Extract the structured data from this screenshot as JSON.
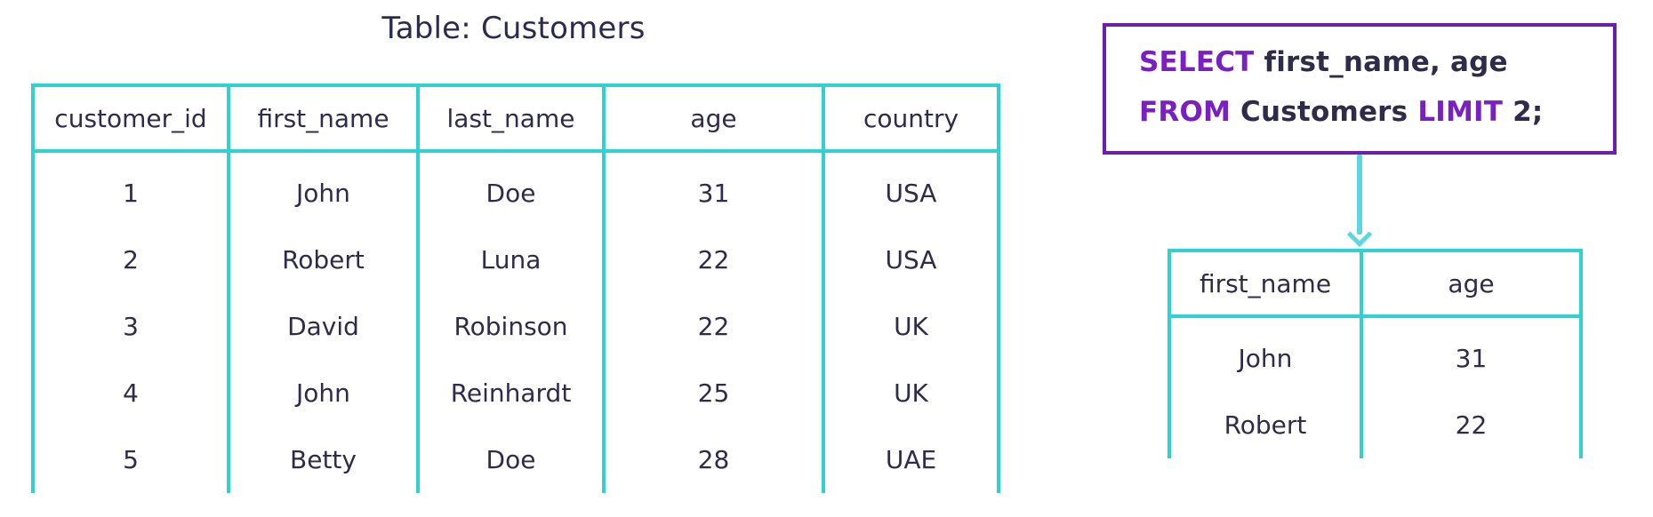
{
  "title": "Table: Customers",
  "customers_table": {
    "headers": [
      "customer_id",
      "first_name",
      "last_name",
      "age",
      "country"
    ],
    "rows": [
      [
        "1",
        "John",
        "Doe",
        "31",
        "USA"
      ],
      [
        "2",
        "Robert",
        "Luna",
        "22",
        "USA"
      ],
      [
        "3",
        "David",
        "Robinson",
        "22",
        "UK"
      ],
      [
        "4",
        "John",
        "Reinhardt",
        "25",
        "UK"
      ],
      [
        "5",
        "Betty",
        "Doe",
        "28",
        "UAE"
      ]
    ]
  },
  "query": {
    "line1_keyword": "SELECT",
    "line1_text": " first_name, age",
    "line2_keyword1": "FROM",
    "line2_text1": " Customers ",
    "line2_keyword2": "LIMIT",
    "line2_text2": " 2;"
  },
  "result_table": {
    "headers": [
      "first_name",
      "age"
    ],
    "rows": [
      [
        "John",
        "31"
      ],
      [
        "Robert",
        "22"
      ]
    ]
  },
  "colors": {
    "table_border": "#2fd1d1",
    "keyword": "#7a1fc1",
    "text": "#2f2b4a",
    "query_border": "#6a1fb0",
    "arrow": "#5ad8de"
  },
  "icons": {
    "arrow": "down-arrow-icon"
  }
}
